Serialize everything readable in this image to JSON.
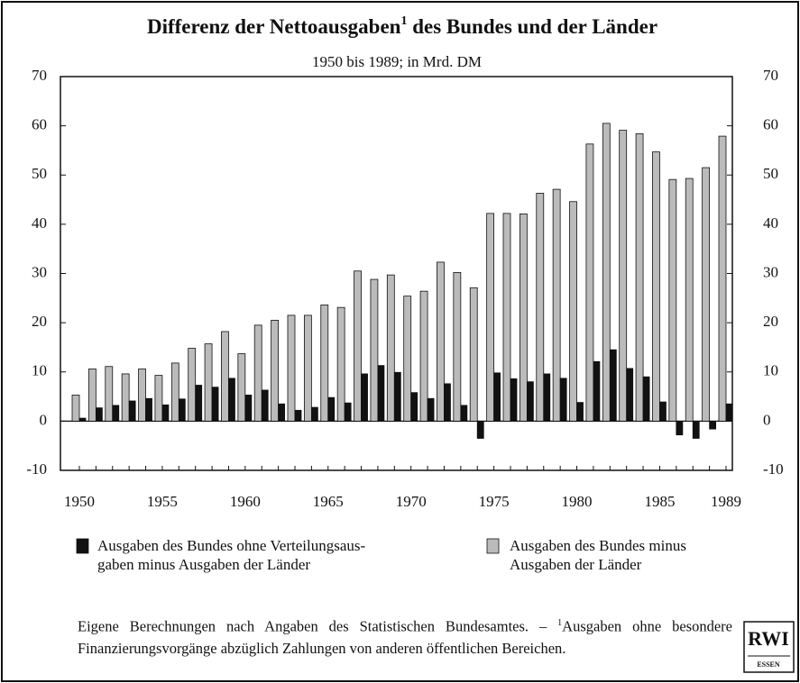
{
  "chart_data": {
    "type": "bar",
    "title": {
      "main": "Differenz der Nettoausgaben",
      "sup": "1",
      "rest": " des Bundes und der Länder"
    },
    "subtitle": "1950 bis 1989; in Mrd. DM",
    "categories": [
      "1950",
      null,
      null,
      null,
      null,
      "1955",
      null,
      null,
      null,
      null,
      "1960",
      null,
      null,
      null,
      null,
      "1965",
      null,
      null,
      null,
      null,
      "1970",
      null,
      null,
      null,
      null,
      "1975",
      null,
      null,
      null,
      null,
      "1980",
      null,
      null,
      null,
      null,
      "1985",
      null,
      null,
      null,
      "1989"
    ],
    "series": [
      {
        "name": [
          "Ausgaben des Bundes ohne Verteilungsaus-",
          "gaben minus Ausgaben der Länder"
        ],
        "color": "#111111",
        "values": [
          0.6,
          2.7,
          3.2,
          4.1,
          4.6,
          3.3,
          4.5,
          7.3,
          6.9,
          8.7,
          5.3,
          6.3,
          3.5,
          2.2,
          2.8,
          4.8,
          3.7,
          9.6,
          11.3,
          9.9,
          5.8,
          4.6,
          7.6,
          3.2,
          -3.5,
          9.8,
          8.6,
          8.0,
          9.6,
          8.7,
          3.8,
          12.1,
          14.5,
          10.7,
          9.0,
          3.9,
          -2.8,
          -3.5,
          -1.6,
          3.5
        ]
      },
      {
        "name": [
          "Ausgaben des Bundes minus",
          "Ausgaben der Länder"
        ],
        "color": "#bbbbbb",
        "values": [
          5.3,
          10.6,
          11.1,
          9.6,
          10.6,
          9.3,
          11.8,
          14.8,
          15.7,
          18.2,
          13.7,
          19.5,
          20.5,
          21.5,
          21.5,
          23.6,
          23.1,
          30.5,
          28.8,
          29.7,
          25.4,
          26.4,
          32.3,
          30.2,
          27.1,
          42.2,
          42.2,
          42.1,
          46.3,
          47.1,
          44.6,
          56.3,
          60.5,
          59.1,
          58.4,
          54.7,
          49.1,
          49.3,
          51.5,
          57.9
        ]
      }
    ],
    "ylim": [
      -10,
      70
    ],
    "yticks": [
      -10,
      0,
      10,
      20,
      30,
      40,
      50,
      60,
      70
    ],
    "grid": false,
    "footnote": {
      "text": "Eigene Berechnungen nach Angaben des Statistischen Bundesamtes. – ",
      "sup": "1",
      "rest": "Ausgaben ohne besondere Finanzierungsvorgänge abzüglich Zahlungen von anderen öffentlichen Bereichen."
    },
    "logo": {
      "main": "RWI",
      "sub": "ESSEN"
    }
  }
}
